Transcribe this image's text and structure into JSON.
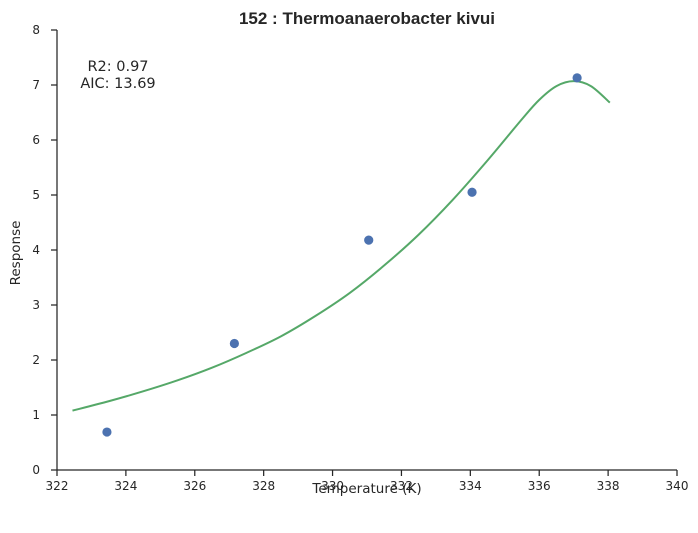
{
  "chart_data": {
    "type": "scatter",
    "title": "152 : Thermoanaerobacter kivui",
    "xlabel": "Temperature (K)",
    "ylabel": "Response",
    "xlim": [
      322,
      340
    ],
    "ylim": [
      0,
      8
    ],
    "xticks": [
      322,
      324,
      326,
      328,
      330,
      332,
      334,
      336,
      338,
      340
    ],
    "yticks": [
      0,
      1,
      2,
      3,
      4,
      5,
      6,
      7,
      8
    ],
    "grid": false,
    "series": [
      {
        "kind": "points",
        "color": "#4c72b0",
        "x": [
          323.45,
          327.15,
          331.05,
          334.05,
          337.1
        ],
        "y": [
          0.69,
          2.3,
          4.18,
          5.05,
          7.13
        ]
      },
      {
        "kind": "fit-line",
        "color": "#55a868",
        "x": [
          322.45,
          323.5,
          324.5,
          325.5,
          326.5,
          327.5,
          328.5,
          329.5,
          330.5,
          331.5,
          332.5,
          333.5,
          334.5,
          335.5,
          336.0,
          336.5,
          337.0,
          337.5,
          338.05
        ],
        "y": [
          1.08,
          1.25,
          1.43,
          1.63,
          1.86,
          2.13,
          2.43,
          2.8,
          3.22,
          3.72,
          4.28,
          4.92,
          5.63,
          6.38,
          6.73,
          6.98,
          7.07,
          6.98,
          6.68
        ]
      }
    ],
    "annotations": [
      "R2: 0.97",
      "AIC: 13.69"
    ]
  }
}
